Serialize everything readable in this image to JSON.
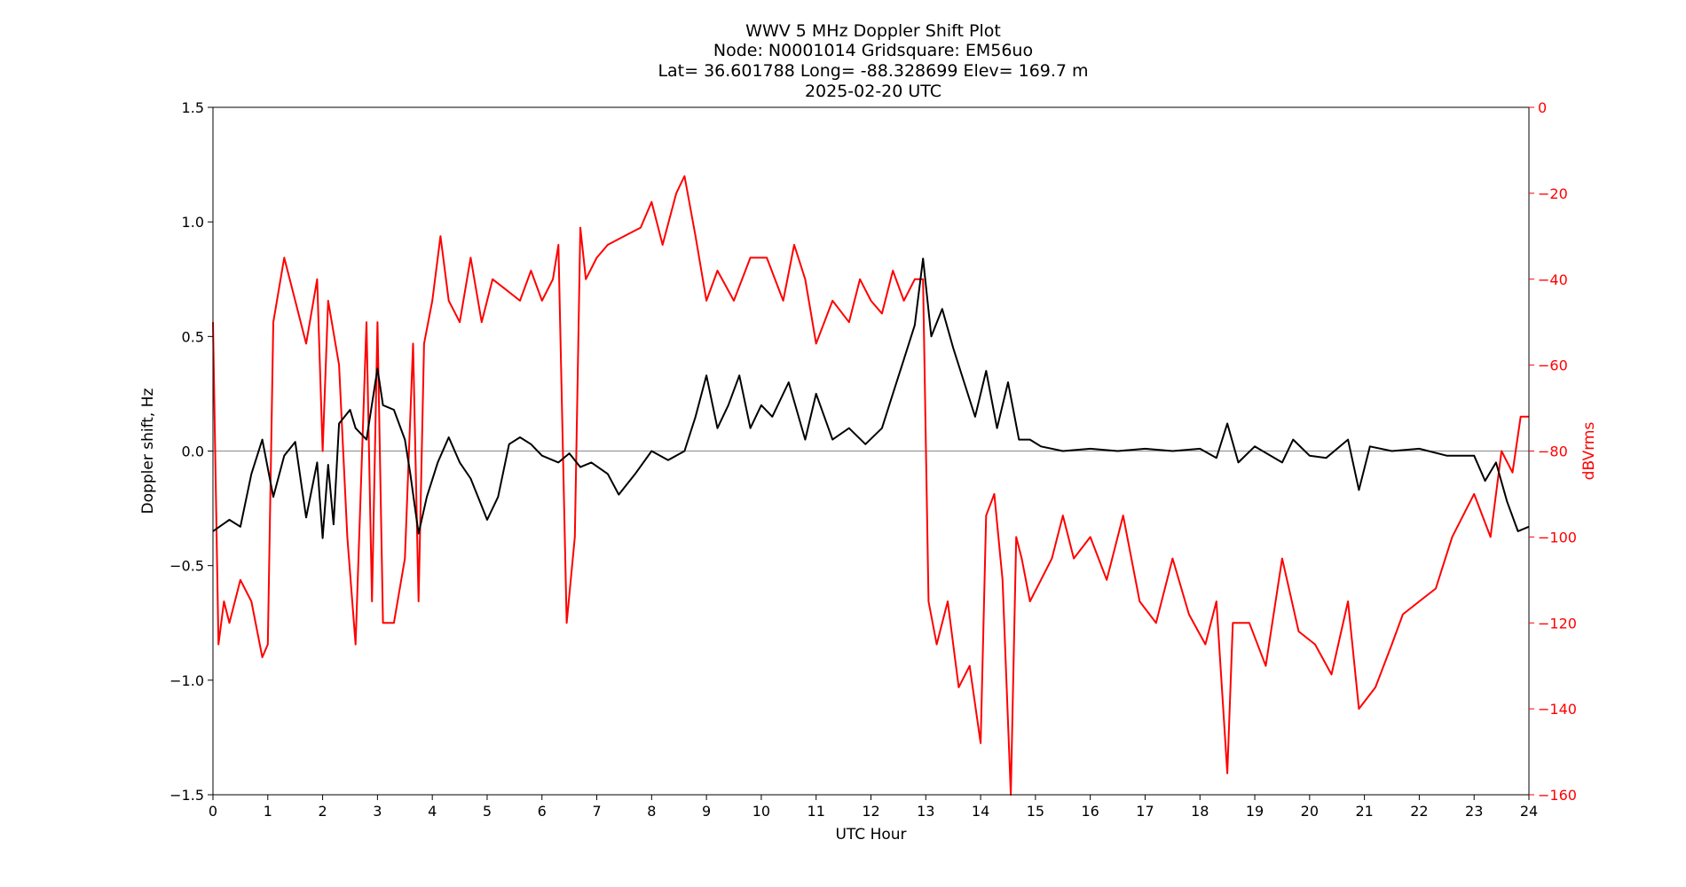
{
  "chart_data": {
    "type": "line",
    "title_lines": [
      "WWV 5 MHz Doppler Shift Plot",
      "Node:  N0001014     Gridsquare:  EM56uo",
      "Lat= 36.601788    Long= -88.328699    Elev= 169.7 m",
      "2025-02-20  UTC"
    ],
    "xlabel": "UTC Hour",
    "ylabel_left": "Doppler shift, Hz",
    "ylabel_right": "dBVrms",
    "xlim": [
      0,
      24
    ],
    "ylim_left": [
      -1.5,
      1.5
    ],
    "ylim_right": [
      -160,
      0
    ],
    "x_ticks": [
      "0",
      "1",
      "2",
      "3",
      "4",
      "5",
      "6",
      "7",
      "8",
      "9",
      "10",
      "11",
      "12",
      "13",
      "14",
      "15",
      "16",
      "17",
      "18",
      "19",
      "20",
      "21",
      "22",
      "23",
      "24"
    ],
    "y_left_ticks": [
      "1.5",
      "1.0",
      "0.5",
      "0.0",
      "−0.5",
      "−1.0",
      "−1.5"
    ],
    "y_right_ticks": [
      "0",
      "−20",
      "−40",
      "−60",
      "−80",
      "−100",
      "−120",
      "−140",
      "−160"
    ],
    "zero_line": 0.0,
    "series": [
      {
        "axis": "left",
        "color": "#000000",
        "x": [
          0.0,
          0.3,
          0.5,
          0.7,
          0.9,
          1.1,
          1.3,
          1.5,
          1.7,
          1.9,
          2.0,
          2.1,
          2.2,
          2.3,
          2.5,
          2.6,
          2.8,
          3.0,
          3.1,
          3.3,
          3.5,
          3.6,
          3.75,
          3.9,
          4.1,
          4.3,
          4.5,
          4.7,
          5.0,
          5.2,
          5.4,
          5.6,
          5.8,
          6.0,
          6.3,
          6.5,
          6.7,
          6.9,
          7.2,
          7.4,
          7.7,
          8.0,
          8.3,
          8.6,
          8.8,
          9.0,
          9.2,
          9.4,
          9.6,
          9.8,
          10.0,
          10.2,
          10.5,
          10.8,
          11.0,
          11.3,
          11.6,
          11.9,
          12.2,
          12.4,
          12.6,
          12.8,
          12.95,
          13.1,
          13.3,
          13.5,
          13.7,
          13.9,
          14.1,
          14.3,
          14.5,
          14.7,
          14.9,
          15.1,
          15.5,
          16.0,
          16.5,
          17.0,
          17.5,
          18.0,
          18.3,
          18.5,
          18.7,
          19.0,
          19.5,
          19.7,
          20.0,
          20.3,
          20.7,
          20.9,
          21.1,
          21.5,
          22.0,
          22.5,
          23.0,
          23.2,
          23.4,
          23.6,
          23.8,
          24.0
        ],
        "values": [
          -0.35,
          -0.3,
          -0.33,
          -0.1,
          0.05,
          -0.2,
          -0.02,
          0.04,
          -0.29,
          -0.05,
          -0.38,
          -0.06,
          -0.32,
          0.12,
          0.18,
          0.1,
          0.05,
          0.36,
          0.2,
          0.18,
          0.05,
          -0.1,
          -0.36,
          -0.2,
          -0.05,
          0.06,
          -0.05,
          -0.12,
          -0.3,
          -0.2,
          0.03,
          0.06,
          0.03,
          -0.02,
          -0.05,
          -0.01,
          -0.07,
          -0.05,
          -0.1,
          -0.19,
          -0.1,
          0.0,
          -0.04,
          0.0,
          0.15,
          0.33,
          0.1,
          0.2,
          0.33,
          0.1,
          0.2,
          0.15,
          0.3,
          0.05,
          0.25,
          0.05,
          0.1,
          0.03,
          0.1,
          0.25,
          0.4,
          0.55,
          0.84,
          0.5,
          0.62,
          0.45,
          0.3,
          0.15,
          0.35,
          0.1,
          0.3,
          0.05,
          0.05,
          0.02,
          0.0,
          0.01,
          0.0,
          0.01,
          0.0,
          0.01,
          -0.03,
          0.12,
          -0.05,
          0.02,
          -0.05,
          0.05,
          -0.02,
          -0.03,
          0.05,
          -0.17,
          0.02,
          0.0,
          0.01,
          -0.02,
          -0.02,
          -0.13,
          -0.05,
          -0.22,
          -0.35,
          -0.33
        ]
      },
      {
        "axis": "right",
        "color": "#ff0000",
        "x": [
          0.0,
          0.1,
          0.2,
          0.3,
          0.5,
          0.7,
          0.9,
          1.0,
          1.1,
          1.3,
          1.5,
          1.7,
          1.9,
          2.0,
          2.1,
          2.3,
          2.45,
          2.6,
          2.8,
          2.9,
          3.0,
          3.1,
          3.3,
          3.5,
          3.65,
          3.75,
          3.85,
          4.0,
          4.15,
          4.3,
          4.5,
          4.7,
          4.9,
          5.1,
          5.3,
          5.6,
          5.8,
          6.0,
          6.2,
          6.3,
          6.45,
          6.6,
          6.7,
          6.8,
          7.0,
          7.2,
          7.5,
          7.8,
          8.0,
          8.2,
          8.45,
          8.6,
          8.8,
          9.0,
          9.2,
          9.5,
          9.8,
          10.1,
          10.4,
          10.6,
          10.8,
          11.0,
          11.3,
          11.6,
          11.8,
          12.0,
          12.2,
          12.4,
          12.6,
          12.8,
          12.95,
          13.05,
          13.2,
          13.4,
          13.6,
          13.8,
          14.0,
          14.1,
          14.25,
          14.4,
          14.55,
          14.65,
          14.75,
          14.9,
          15.1,
          15.3,
          15.5,
          15.7,
          16.0,
          16.3,
          16.6,
          16.9,
          17.2,
          17.5,
          17.8,
          18.1,
          18.3,
          18.5,
          18.6,
          18.9,
          19.2,
          19.5,
          19.8,
          20.1,
          20.4,
          20.7,
          20.9,
          21.2,
          21.5,
          21.7,
          22.0,
          22.3,
          22.6,
          23.0,
          23.3,
          23.5,
          23.7,
          23.85,
          24.0
        ],
        "values": [
          -50,
          -125,
          -115,
          -120,
          -110,
          -115,
          -128,
          -125,
          -50,
          -35,
          -45,
          -55,
          -40,
          -80,
          -45,
          -60,
          -100,
          -125,
          -50,
          -115,
          -50,
          -120,
          -120,
          -105,
          -55,
          -115,
          -55,
          -45,
          -30,
          -45,
          -50,
          -35,
          -50,
          -40,
          -42,
          -45,
          -38,
          -45,
          -40,
          -32,
          -120,
          -100,
          -28,
          -40,
          -35,
          -32,
          -30,
          -28,
          -22,
          -32,
          -20,
          -16,
          -30,
          -45,
          -38,
          -45,
          -35,
          -35,
          -45,
          -32,
          -40,
          -55,
          -45,
          -50,
          -40,
          -45,
          -48,
          -38,
          -45,
          -40,
          -40,
          -115,
          -125,
          -115,
          -135,
          -130,
          -148,
          -95,
          -90,
          -110,
          -165,
          -100,
          -105,
          -115,
          -110,
          -105,
          -95,
          -105,
          -100,
          -110,
          -95,
          -115,
          -120,
          -105,
          -118,
          -125,
          -115,
          -155,
          -120,
          -120,
          -130,
          -105,
          -122,
          -125,
          -132,
          -115,
          -140,
          -135,
          -125,
          -118,
          -115,
          -112,
          -100,
          -90,
          -100,
          -80,
          -85,
          -72,
          -72
        ]
      }
    ]
  }
}
